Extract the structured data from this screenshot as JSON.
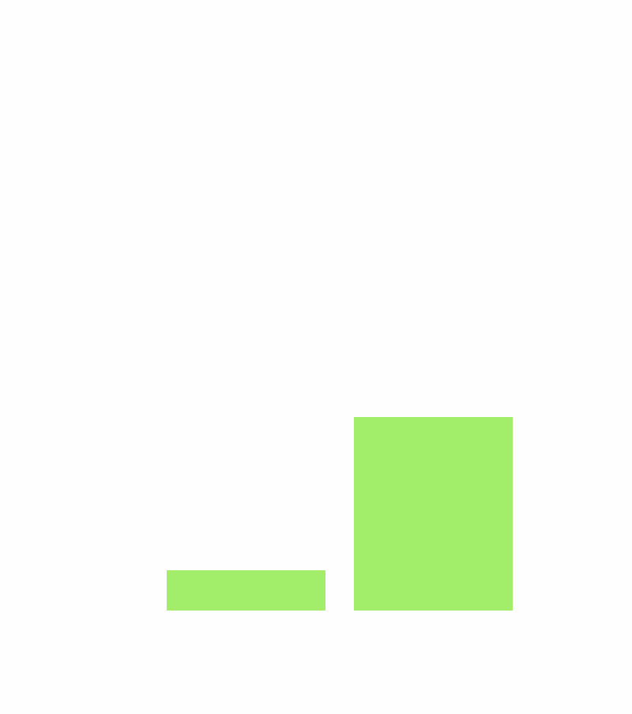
{
  "chart_data": {
    "type": "bar",
    "categories": [
      null,
      null
    ],
    "values": [
      51,
      245
    ],
    "color": "#a2ed6a",
    "ylim": [
      0,
      300
    ]
  }
}
